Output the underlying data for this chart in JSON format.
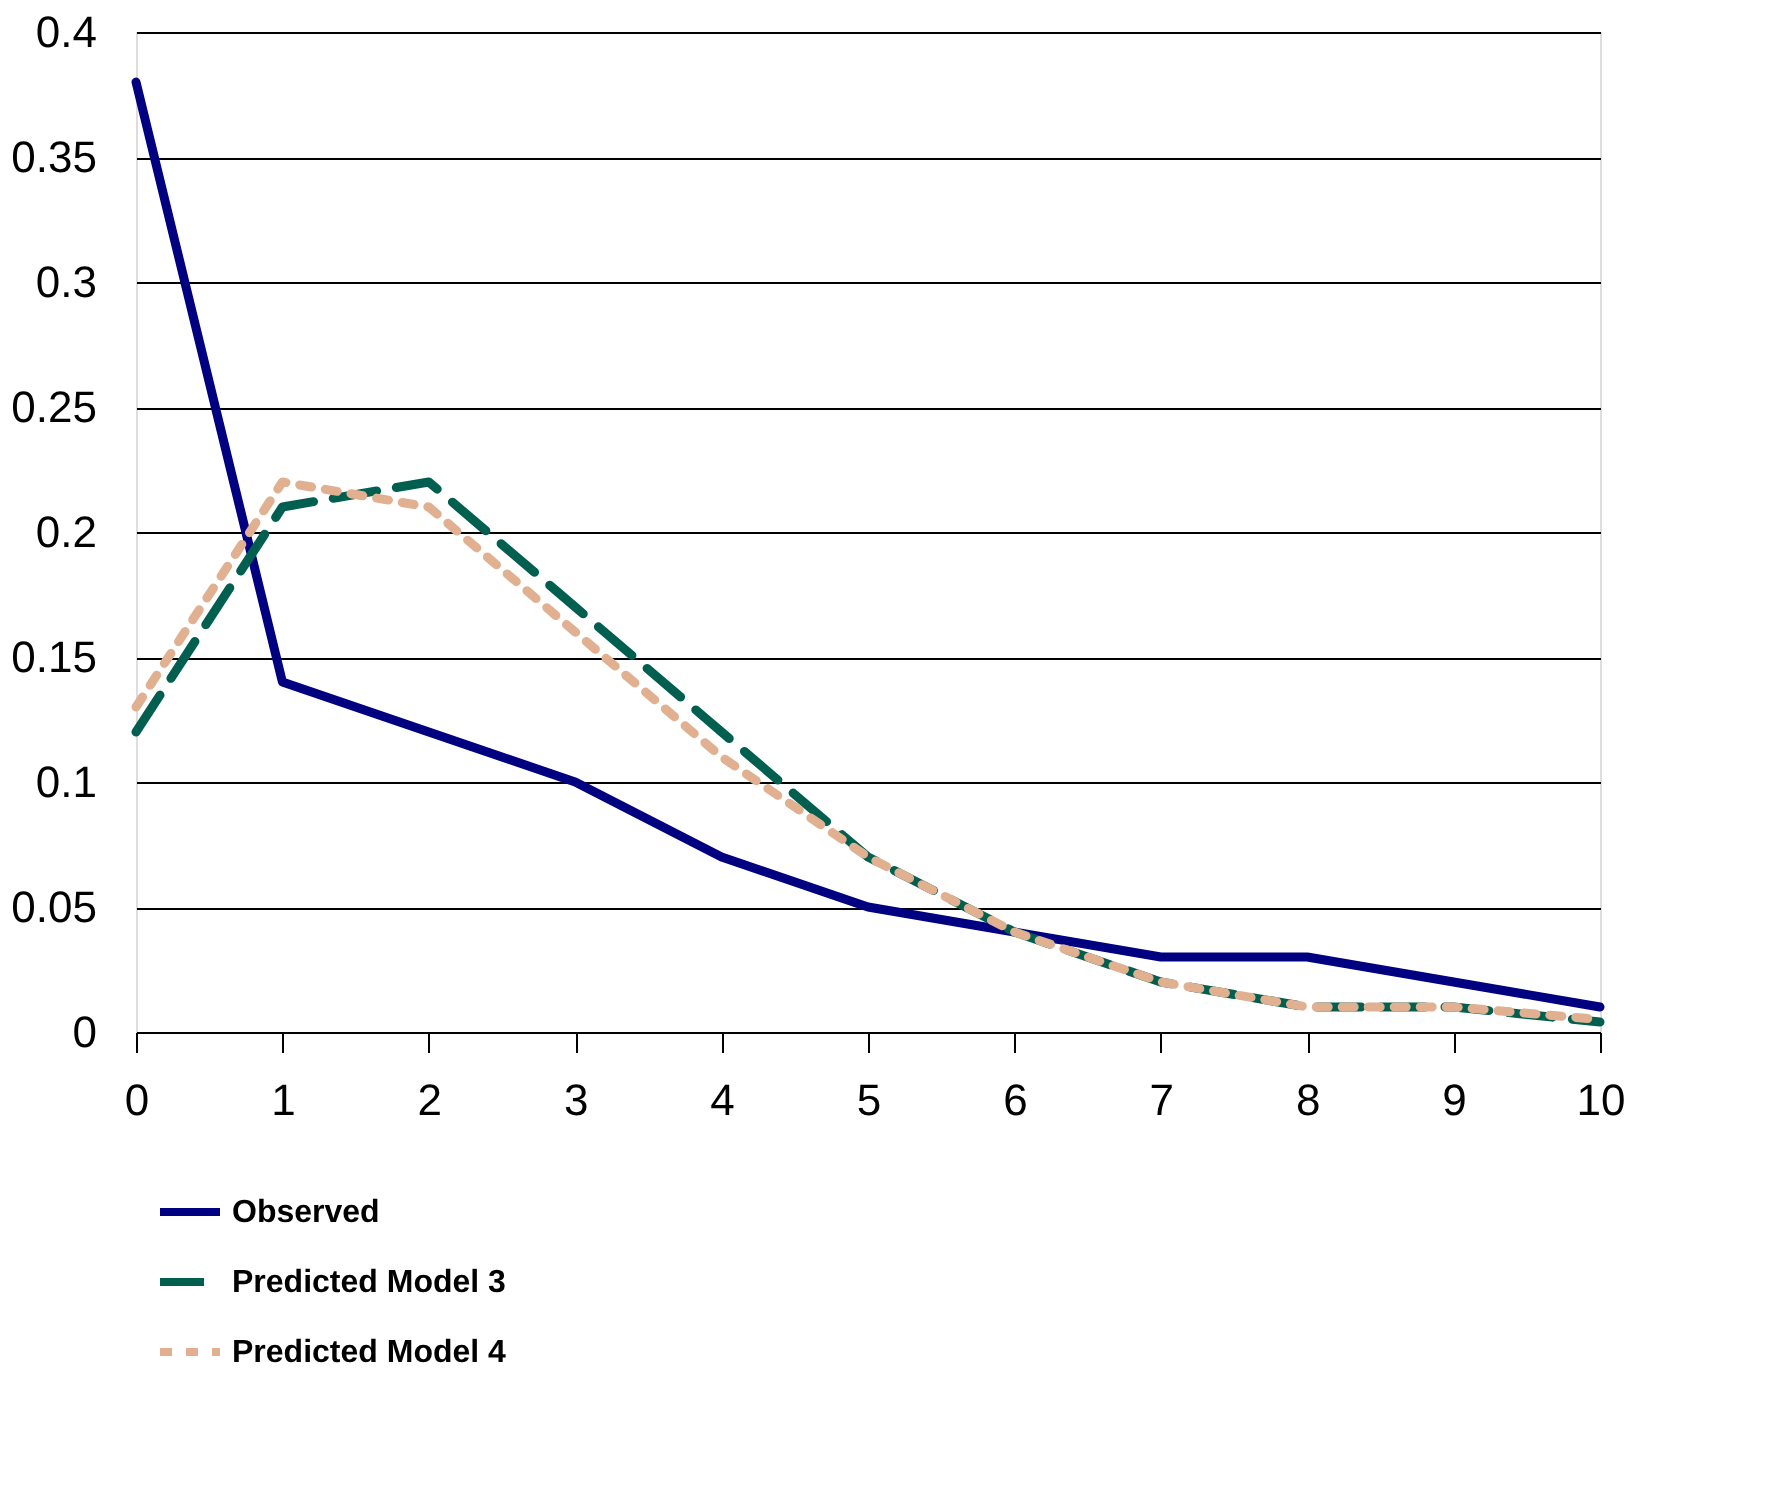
{
  "chart_data": {
    "type": "line",
    "x": [
      0,
      1,
      2,
      3,
      4,
      5,
      6,
      7,
      8,
      9,
      10
    ],
    "series": [
      {
        "name": "Observed",
        "color": "#000080",
        "line_style": "solid",
        "values": [
          0.38,
          0.14,
          0.12,
          0.1,
          0.07,
          0.05,
          0.04,
          0.03,
          0.03,
          0.02,
          0.01
        ]
      },
      {
        "name": "Predicted Model 3",
        "color": "#005f4f",
        "line_style": "dashed",
        "values": [
          0.12,
          0.21,
          0.22,
          0.17,
          0.12,
          0.07,
          0.04,
          0.02,
          0.01,
          0.01,
          0.004
        ]
      },
      {
        "name": "Predicted Model 4",
        "color": "#e0b090",
        "line_style": "dotted",
        "values": [
          0.13,
          0.22,
          0.21,
          0.16,
          0.11,
          0.07,
          0.04,
          0.02,
          0.01,
          0.01,
          0.005
        ]
      }
    ],
    "xlim": [
      0,
      10
    ],
    "xticks": [
      0,
      1,
      2,
      3,
      4,
      5,
      6,
      7,
      8,
      9,
      10
    ],
    "ylim": [
      0,
      0.4
    ],
    "yticks": [
      {
        "value": 0,
        "label": "0"
      },
      0.05,
      {
        "value": 0.1,
        "label": "0.1"
      },
      0.15,
      {
        "value": 0.2,
        "label": "0.2"
      },
      0.25,
      {
        "value": 0.3,
        "label": "0.3"
      },
      0.35,
      {
        "value": 0.4,
        "label": "0.4"
      }
    ],
    "grid": "y",
    "legend": "bottom",
    "marker": "none"
  }
}
